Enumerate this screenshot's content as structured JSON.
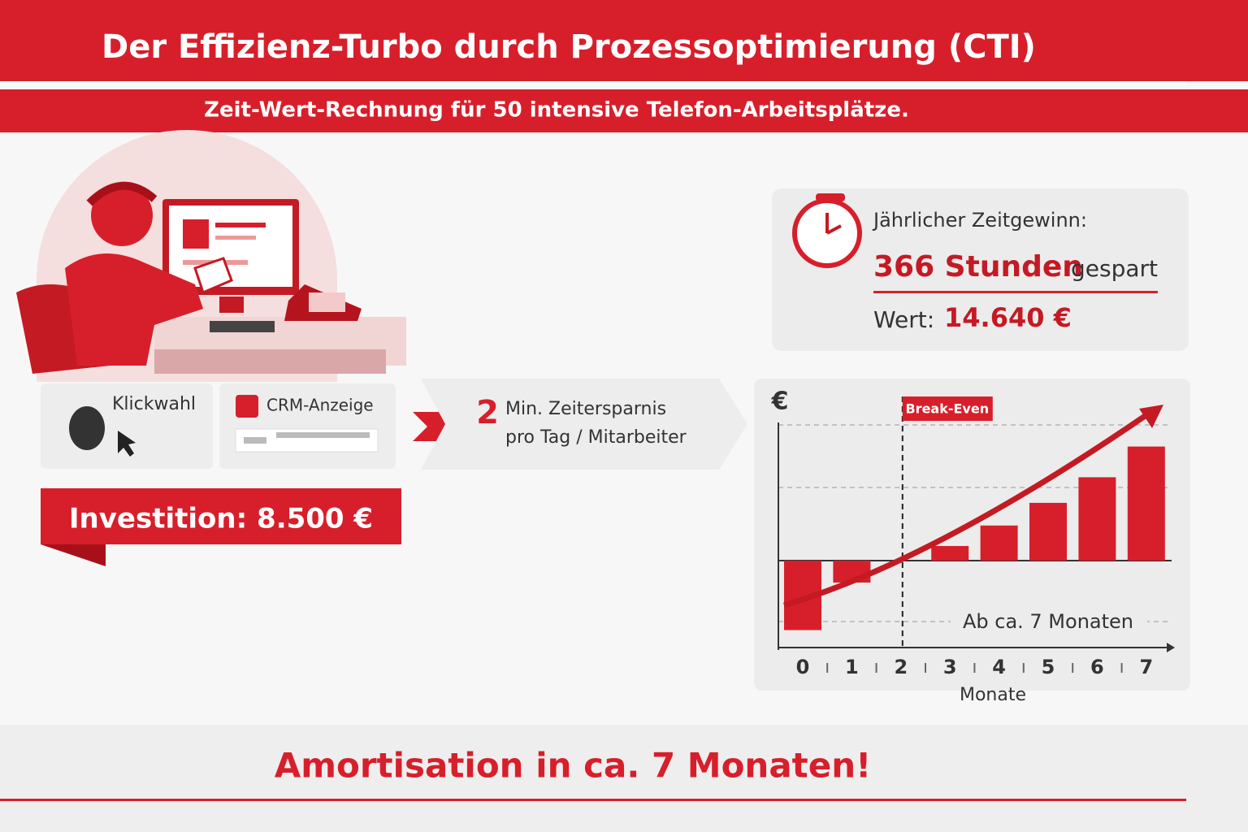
{
  "header": {
    "title": "Der Effizienz-Turbo durch Prozessoptimierung (CTI)",
    "subtitle": "Zeit-Wert-Rechnung für 50 intensive Telefon-Arbeitsplätze."
  },
  "features": [
    {
      "label": "Klickwahl"
    },
    {
      "label": "CRM-Anzeige"
    }
  ],
  "savings": {
    "amount": "2",
    "line1": "Min. Zeitersparnis",
    "line2": "pro Tag / Mitarbeiter"
  },
  "investment": {
    "label": "Investition: 8.500 €"
  },
  "summary": {
    "heading": "Jährlicher Zeitgewinn:",
    "hours": "366 Stunden",
    "hours_suffix": "gespart",
    "value_label": "Wert:",
    "value": "14.640 €"
  },
  "chart_data": {
    "type": "bar",
    "y_label": "€",
    "x_label": "Monate",
    "categories": [
      "0",
      "1",
      "2",
      "3",
      "4",
      "5",
      "6",
      "7"
    ],
    "values": [
      -0.95,
      -0.3,
      0,
      0.2,
      0.48,
      0.79,
      1.14,
      1.56
    ],
    "color": "#d71f2b",
    "ylim": [
      -1.2,
      2.0
    ],
    "annotations": [
      {
        "text": "Break-Even"
      },
      {
        "text": "Ab ca. 7 Monaten"
      }
    ]
  },
  "footer": {
    "text": "Amortisation in ca. 7 Monaten!"
  }
}
